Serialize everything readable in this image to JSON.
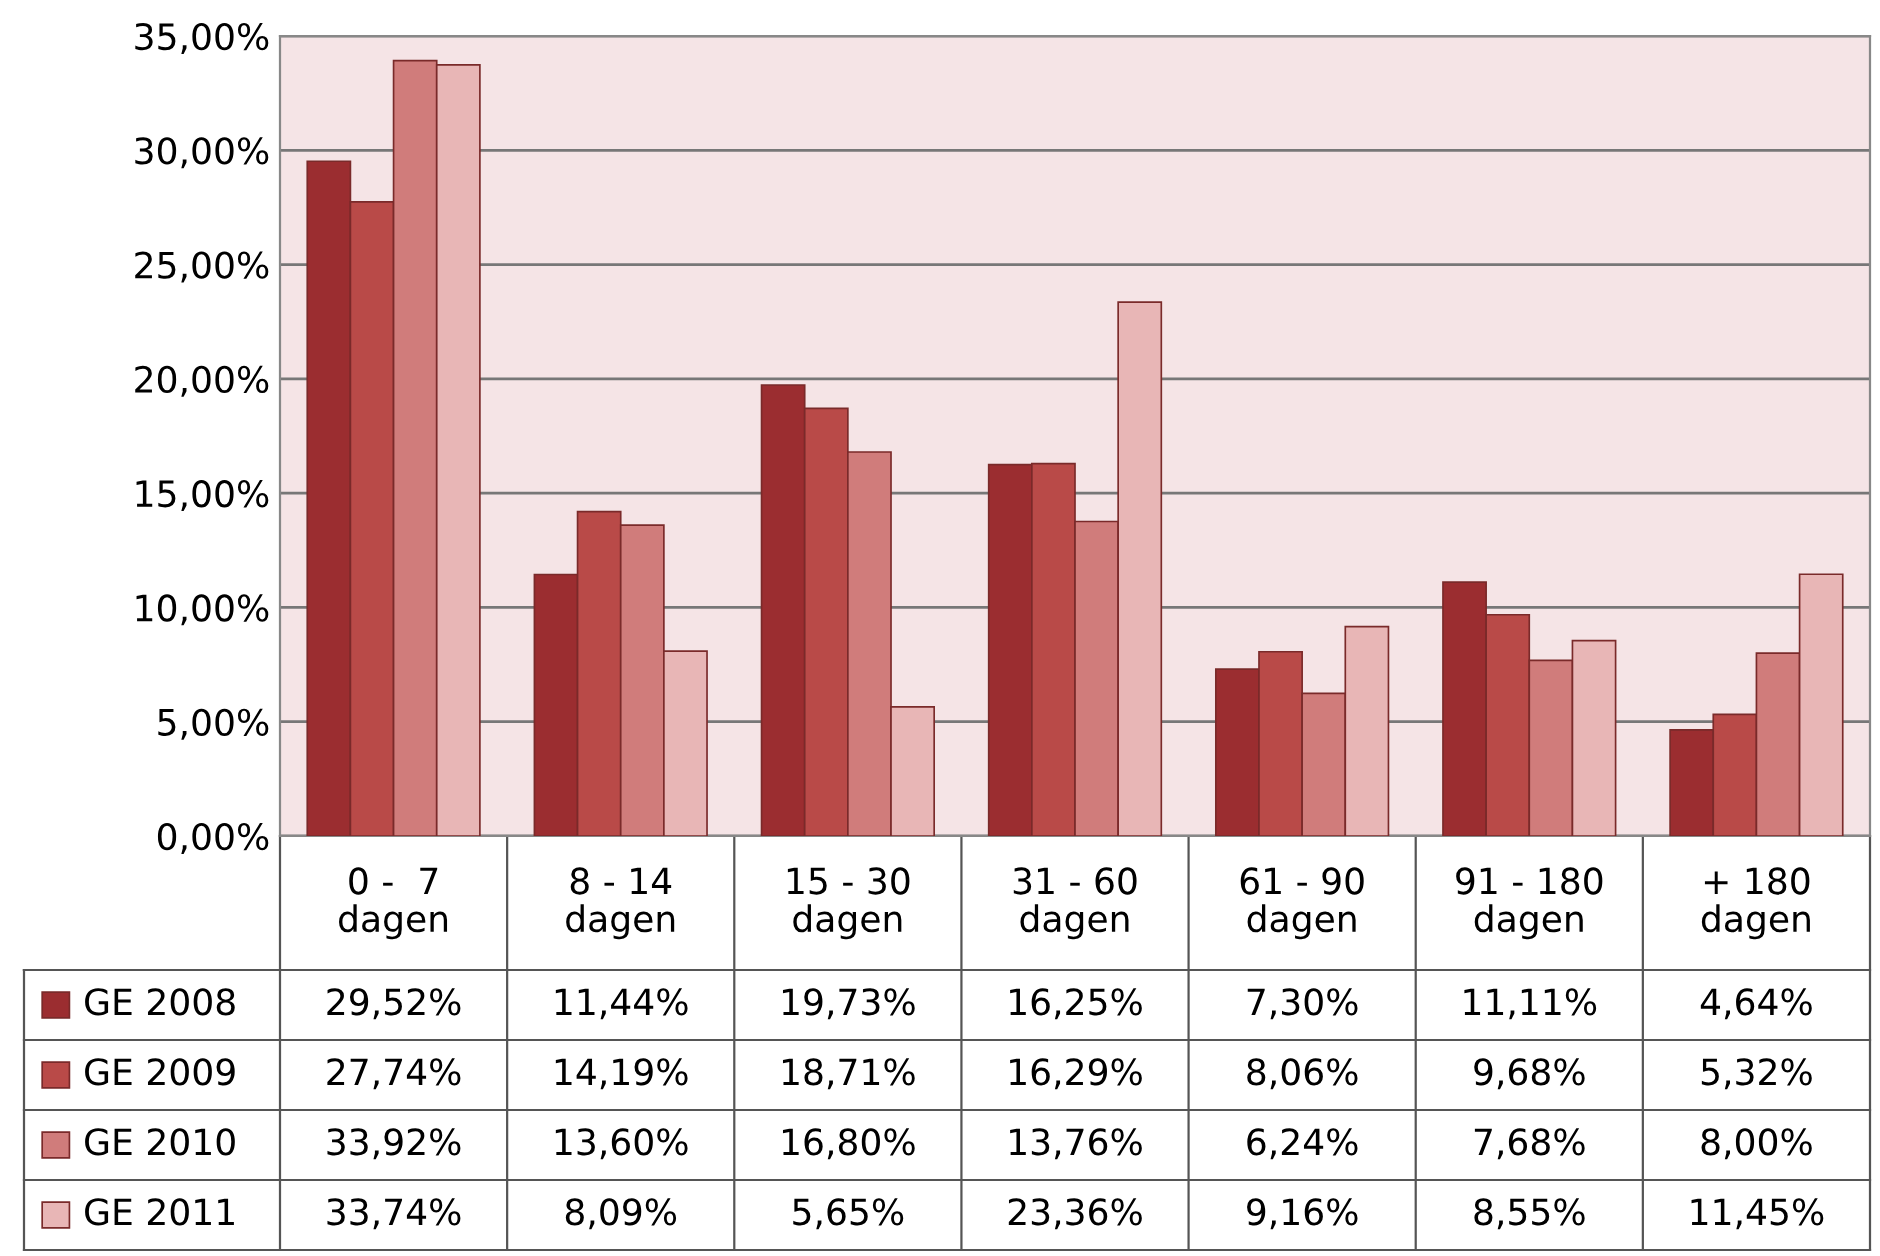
{
  "chart_data": {
    "type": "bar",
    "categories": [
      "0 -  7\ndagen",
      "8 - 14\ndagen",
      "15 - 30\ndagen",
      "31 - 60\ndagen",
      "61 - 90\ndagen",
      "91 - 180\ndagen",
      "+ 180\ndagen"
    ],
    "series": [
      {
        "name": "GE 2008",
        "color": "#9b2d30",
        "values": [
          29.52,
          11.44,
          19.73,
          16.25,
          7.3,
          11.11,
          4.64
        ],
        "value_labels": [
          "29,52%",
          "11,44%",
          "19,73%",
          "16,25%",
          "7,30%",
          "11,11%",
          "4,64%"
        ]
      },
      {
        "name": "GE 2009",
        "color": "#b94a48",
        "values": [
          27.74,
          14.19,
          18.71,
          16.29,
          8.06,
          9.68,
          5.32
        ],
        "value_labels": [
          "27,74%",
          "14,19%",
          "18,71%",
          "16,29%",
          "8,06%",
          "9,68%",
          "5,32%"
        ]
      },
      {
        "name": "GE 2010",
        "color": "#d07c7b",
        "values": [
          33.92,
          13.6,
          16.8,
          13.76,
          6.24,
          7.68,
          8.0
        ],
        "value_labels": [
          "33,92%",
          "13,60%",
          "16,80%",
          "13,76%",
          "6,24%",
          "7,68%",
          "8,00%"
        ]
      },
      {
        "name": "GE 2011",
        "color": "#e8b6b6",
        "values": [
          33.74,
          8.09,
          5.65,
          23.36,
          9.16,
          8.55,
          11.45
        ],
        "value_labels": [
          "33,74%",
          "8,09%",
          "5,65%",
          "23,36%",
          "9,16%",
          "8,55%",
          "11,45%"
        ]
      }
    ],
    "ylim": [
      0,
      35
    ],
    "yticks": [
      {
        "value": 0,
        "label": "0,00%"
      },
      {
        "value": 5,
        "label": "5,00%"
      },
      {
        "value": 10,
        "label": "10,00%"
      },
      {
        "value": 15,
        "label": "15,00%"
      },
      {
        "value": 20,
        "label": "20,00%"
      },
      {
        "value": 25,
        "label": "25,00%"
      },
      {
        "value": 30,
        "label": "30,00%"
      },
      {
        "value": 35,
        "label": "35,00%"
      }
    ],
    "grid": "y",
    "legend": "bottom"
  }
}
